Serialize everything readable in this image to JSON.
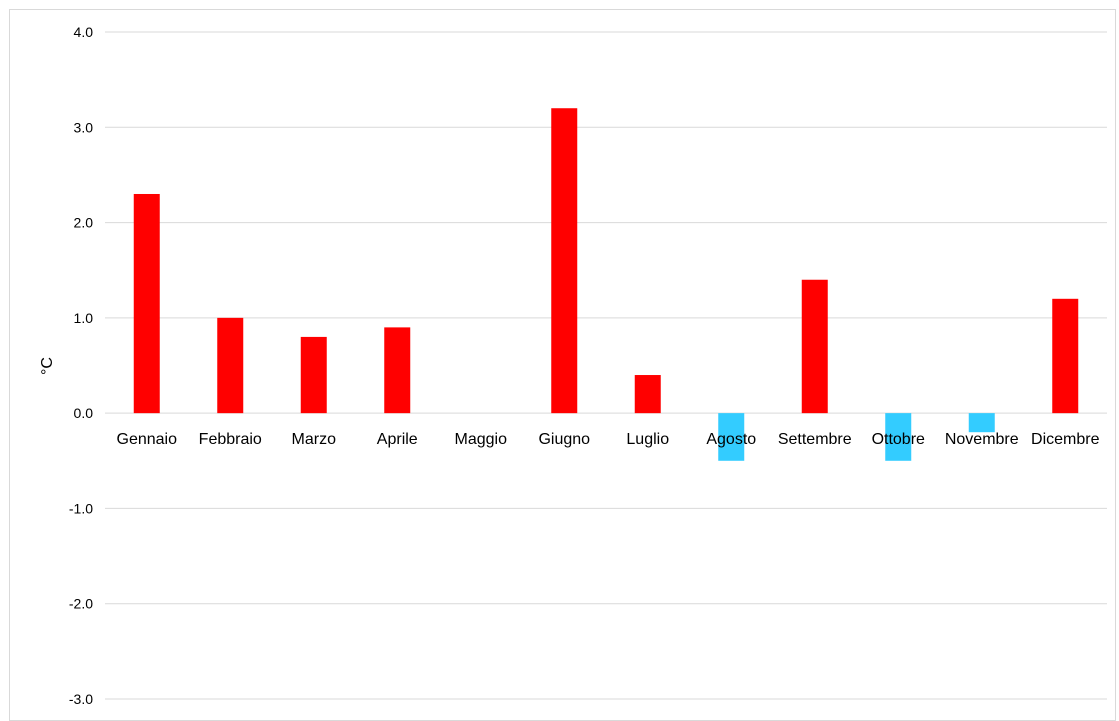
{
  "chart_data": {
    "type": "bar",
    "title": "",
    "xlabel": "",
    "ylabel": "°C",
    "ylim": [
      -3.0,
      4.0
    ],
    "ytick_step": 1.0,
    "yticks": [
      "4.0",
      "3.0",
      "2.0",
      "1.0",
      "0.0",
      "-1.0",
      "-2.0",
      "-3.0"
    ],
    "grid": true,
    "legend": "none",
    "categories": [
      "Gennaio",
      "Febbraio",
      "Marzo",
      "Aprile",
      "Maggio",
      "Giugno",
      "Luglio",
      "Agosto",
      "Settembre",
      "Ottobre",
      "Novembre",
      "Dicembre"
    ],
    "values": [
      2.3,
      1.0,
      0.8,
      0.9,
      0.0,
      3.2,
      0.4,
      -0.5,
      1.4,
      -0.5,
      -0.2,
      1.2
    ],
    "colors": {
      "positive": "#ff0000",
      "negative": "#33ccff",
      "gridline": "#d9d9d9",
      "axis": "#d9d9d9"
    }
  }
}
